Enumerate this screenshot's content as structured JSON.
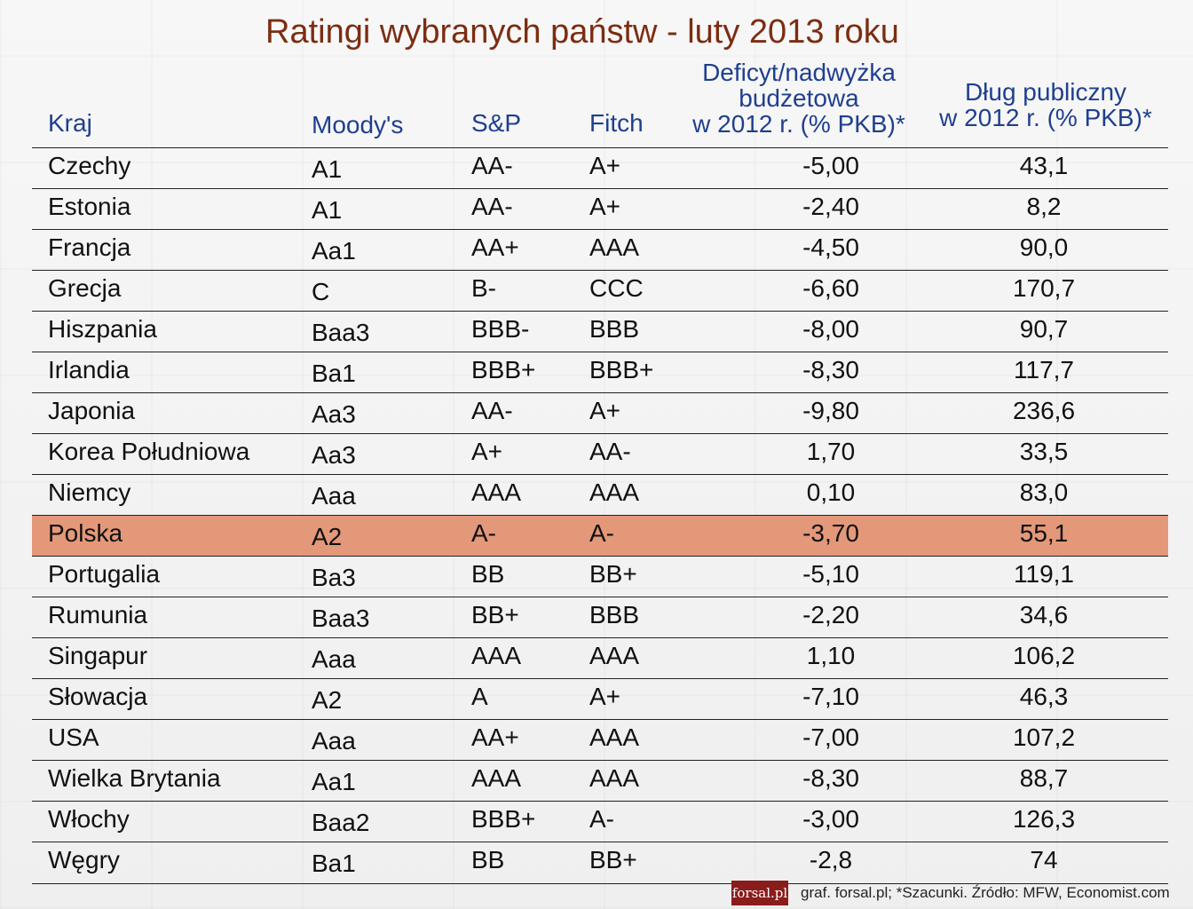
{
  "chart_data": {
    "type": "table",
    "title": "Ratingi wybranych państw - luty 2013 roku",
    "columns": {
      "country": "Kraj",
      "moodys": "Moody's",
      "sp": "S&P",
      "fitch": "Fitch",
      "deficit_line1": "Deficyt/nadwyżka",
      "deficit_line2": "budżetowa",
      "deficit_line3": "w 2012 r. (% PKB)*",
      "debt_line1": "Dług publiczny",
      "debt_line2": "w 2012 r. (% PKB)*"
    },
    "rows": [
      {
        "country": "Czechy",
        "moodys": "A1",
        "sp": "AA-",
        "fitch": "A+",
        "deficit": "-5,00",
        "debt": "43,1"
      },
      {
        "country": "Estonia",
        "moodys": "A1",
        "sp": "AA-",
        "fitch": "A+",
        "deficit": "-2,40",
        "debt": "8,2"
      },
      {
        "country": "Francja",
        "moodys": "Aa1",
        "sp": "AA+",
        "fitch": "AAA",
        "deficit": "-4,50",
        "debt": "90,0"
      },
      {
        "country": "Grecja",
        "moodys": "C",
        "sp": "B-",
        "fitch": "CCC",
        "deficit": "-6,60",
        "debt": "170,7"
      },
      {
        "country": "Hiszpania",
        "moodys": "Baa3",
        "sp": "BBB-",
        "fitch": "BBB",
        "deficit": "-8,00",
        "debt": "90,7"
      },
      {
        "country": "Irlandia",
        "moodys": "Ba1",
        "sp": "BBB+",
        "fitch": "BBB+",
        "deficit": "-8,30",
        "debt": "117,7"
      },
      {
        "country": "Japonia",
        "moodys": "Aa3",
        "sp": "AA-",
        "fitch": "A+",
        "deficit": "-9,80",
        "debt": "236,6"
      },
      {
        "country": "Korea Południowa",
        "moodys": "Aa3",
        "sp": "A+",
        "fitch": "AA-",
        "deficit": "1,70",
        "debt": "33,5"
      },
      {
        "country": "Niemcy",
        "moodys": "Aaa",
        "sp": "AAA",
        "fitch": "AAA",
        "deficit": "0,10",
        "debt": "83,0"
      },
      {
        "country": "Polska",
        "moodys": "A2",
        "sp": "A-",
        "fitch": "A-",
        "deficit": "-3,70",
        "debt": "55,1",
        "highlight": true
      },
      {
        "country": "Portugalia",
        "moodys": "Ba3",
        "sp": "BB",
        "fitch": "BB+",
        "deficit": "-5,10",
        "debt": "119,1"
      },
      {
        "country": "Rumunia",
        "moodys": "Baa3",
        "sp": "BB+",
        "fitch": "BBB",
        "deficit": "-2,20",
        "debt": "34,6"
      },
      {
        "country": "Singapur",
        "moodys": "Aaa",
        "sp": "AAA",
        "fitch": "AAA",
        "deficit": "1,10",
        "debt": "106,2"
      },
      {
        "country": "Słowacja",
        "moodys": "A2",
        "sp": "A",
        "fitch": "A+",
        "deficit": "-7,10",
        "debt": "46,3"
      },
      {
        "country": "USA",
        "moodys": "Aaa",
        "sp": "AA+",
        "fitch": "AAA",
        "deficit": "-7,00",
        "debt": "107,2"
      },
      {
        "country": "Wielka Brytania",
        "moodys": "Aa1",
        "sp": "AAA",
        "fitch": "AAA",
        "deficit": "-8,30",
        "debt": "88,7"
      },
      {
        "country": "Włochy",
        "moodys": "Baa2",
        "sp": "BBB+",
        "fitch": "A-",
        "deficit": "-3,00",
        "debt": "126,3"
      },
      {
        "country": "Węgry",
        "moodys": "Ba1",
        "sp": "BB",
        "fitch": "BB+",
        "deficit": "-2,8",
        "debt": "74"
      }
    ],
    "highlight_color": "#e4987a"
  },
  "footer": {
    "logo_text": "forsal.pl",
    "credit": "graf. forsal.pl;  *Szacunki. Źródło: MFW, Economist.com"
  }
}
